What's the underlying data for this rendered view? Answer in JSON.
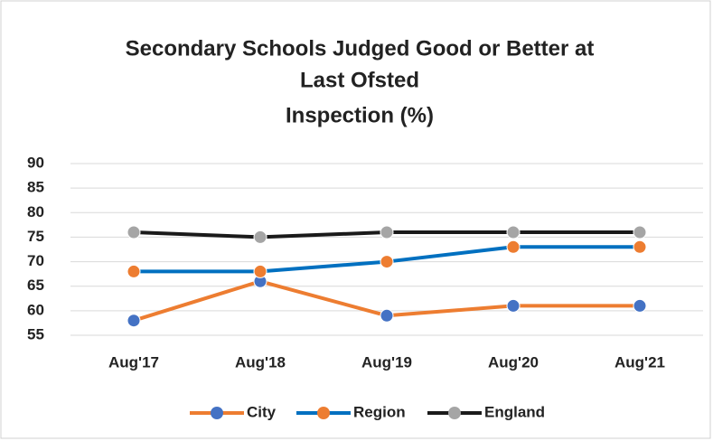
{
  "chart_data": {
    "type": "line",
    "title": [
      "Secondary Schools Judged Good or Better at",
      "Last Ofsted",
      "Inspection (%)"
    ],
    "categories": [
      "Aug'17",
      "Aug'18",
      "Aug'19",
      "Aug'20",
      "Aug'21"
    ],
    "series": [
      {
        "name": "City",
        "color": "#ed7d31",
        "marker_color": "#4472c4",
        "values": [
          58,
          66,
          59,
          61,
          61
        ]
      },
      {
        "name": "Region",
        "color": "#0070c0",
        "marker_color": "#ed7d31",
        "values": [
          68,
          68,
          70,
          73,
          73
        ]
      },
      {
        "name": "England",
        "color": "#1a1a1a",
        "marker_color": "#a5a5a5",
        "values": [
          76,
          75,
          76,
          76,
          76
        ]
      }
    ],
    "ylim": [
      55,
      90
    ],
    "yticks": [
      55,
      60,
      65,
      70,
      75,
      80,
      85,
      90
    ],
    "grid": true,
    "legend": "bottom"
  }
}
